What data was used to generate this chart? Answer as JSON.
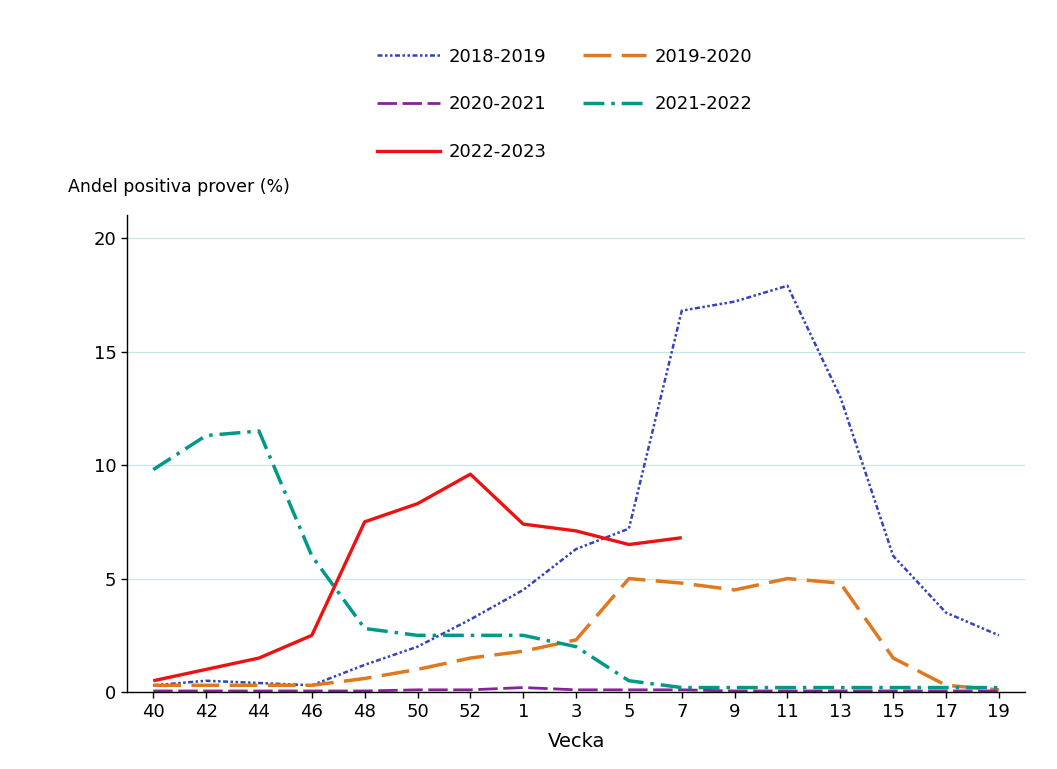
{
  "x_labels": [
    "40",
    "42",
    "44",
    "46",
    "48",
    "50",
    "52",
    "1",
    "3",
    "5",
    "7",
    "9",
    "11",
    "13",
    "15",
    "17",
    "19"
  ],
  "series": {
    "2018-2019": {
      "color": "#3344bb",
      "dash_pattern": [
        2,
        1,
        1,
        1,
        1,
        1
      ],
      "linewidth": 1.8,
      "values": [
        0.3,
        0.5,
        0.4,
        0.3,
        1.2,
        2.0,
        3.2,
        4.5,
        6.3,
        7.2,
        16.8,
        17.2,
        17.9,
        13.0,
        6.0,
        3.5,
        2.5
      ]
    },
    "2019-2020": {
      "color": "#e07820",
      "dash_pattern": [
        8,
        3
      ],
      "linewidth": 2.5,
      "values": [
        0.3,
        0.3,
        0.3,
        0.3,
        0.6,
        1.0,
        1.5,
        1.8,
        2.3,
        5.0,
        4.8,
        4.5,
        5.0,
        4.8,
        1.5,
        0.3,
        0.1
      ]
    },
    "2020-2021": {
      "color": "#882299",
      "dash_pattern": [
        7,
        2
      ],
      "linewidth": 2.0,
      "values": [
        0.05,
        0.05,
        0.05,
        0.05,
        0.05,
        0.1,
        0.1,
        0.2,
        0.1,
        0.1,
        0.1,
        0.05,
        0.05,
        0.05,
        0.05,
        0.05,
        0.05
      ]
    },
    "2021-2022": {
      "color": "#009988",
      "dash_pattern": [
        6,
        2,
        1,
        2
      ],
      "linewidth": 2.5,
      "values": [
        9.8,
        11.3,
        11.5,
        6.0,
        2.8,
        2.5,
        2.5,
        2.5,
        2.0,
        0.5,
        0.2,
        0.2,
        0.2,
        0.2,
        0.2,
        0.2,
        0.2
      ]
    },
    "2022-2023": {
      "color": "#ee1111",
      "dash_pattern": null,
      "linewidth": 2.4,
      "values": [
        0.5,
        1.0,
        1.5,
        2.5,
        7.5,
        8.3,
        9.6,
        7.4,
        7.1,
        6.5,
        6.8,
        null,
        null,
        null,
        null,
        null,
        null
      ]
    }
  },
  "ylabel": "Andel positiva prover (%)",
  "xlabel": "Vecka",
  "ylim": [
    0,
    21
  ],
  "yticks": [
    0,
    5,
    10,
    15,
    20
  ],
  "background_color": "#ffffff",
  "grid_color": "#c8e8e8",
  "legend_order": [
    "2018-2019",
    "2019-2020",
    "2020-2021",
    "2021-2022",
    "2022-2023"
  ],
  "legend_row1": [
    "2018-2019",
    "2019-2020"
  ],
  "legend_row2": [
    "2020-2021",
    "2021-2022"
  ],
  "legend_row3": [
    "2022-2023"
  ]
}
